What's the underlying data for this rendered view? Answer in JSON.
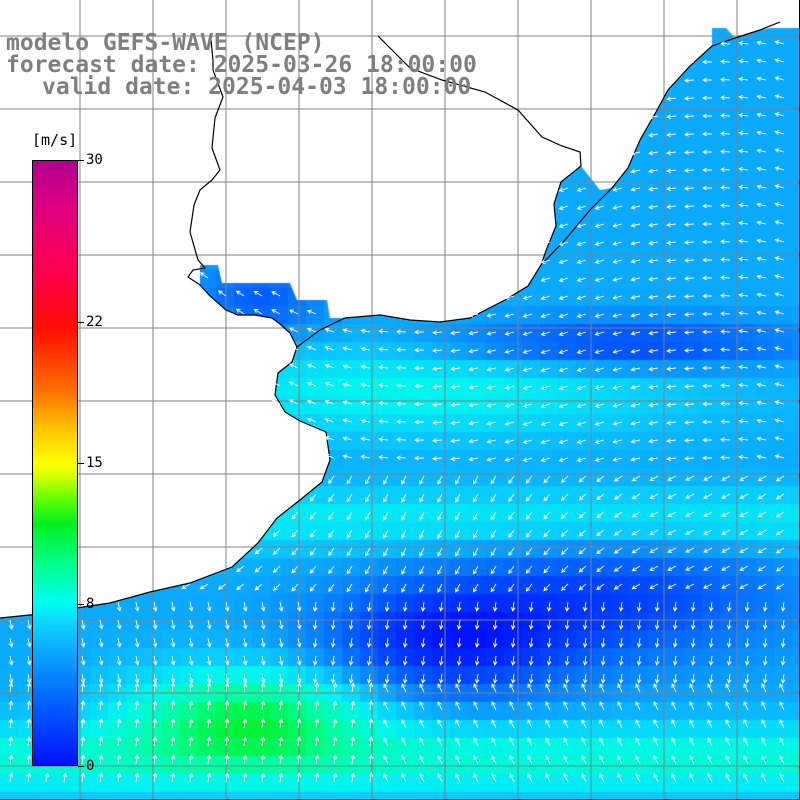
{
  "title": {
    "line1": "modelo GEFS-WAVE (NCEP)",
    "line2": "forecast date: 2025-03-26 18:00:00",
    "line3": "valid date: 2025-04-03 18:00:00"
  },
  "colorbar": {
    "unit": "[m/s]",
    "min": 0,
    "max": 30,
    "ticks": [
      {
        "value": 30,
        "label": "30"
      },
      {
        "value": 22,
        "label": "22"
      },
      {
        "value": 15,
        "label": "15"
      },
      {
        "value": 8,
        "label": "8"
      },
      {
        "value": 0,
        "label": "0"
      }
    ]
  },
  "map": {
    "field": "wind speed",
    "land_color": "#ffffff",
    "grid_color": "#808080",
    "vector_color": "#ffffff"
  }
}
